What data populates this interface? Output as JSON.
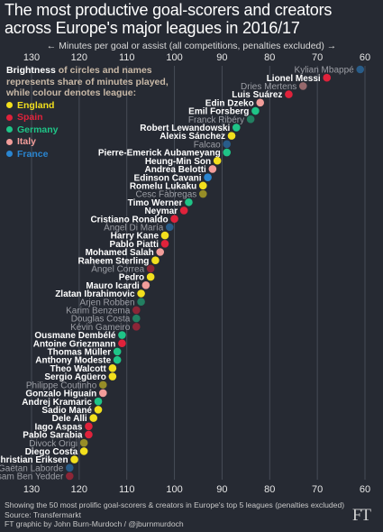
{
  "title": "The most productive goal-scorers and creators across Europe's major leagues in 2016/17",
  "axis_caption": "← Minutes per goal or assist (all competitions, penalties excluded) →",
  "legend": {
    "line1_bold": "Brightness",
    "line1_rest": " of circles and names",
    "line2": "represents share of minutes played,",
    "line3": "while colour denotes league:",
    "leagues": [
      {
        "name": "England",
        "color": "#f2df1d"
      },
      {
        "name": "Spain",
        "color": "#e0223b"
      },
      {
        "name": "Germany",
        "color": "#1fc487"
      },
      {
        "name": "Italy",
        "color": "#f29d9a"
      },
      {
        "name": "France",
        "color": "#2a85d0"
      }
    ]
  },
  "chart_data": {
    "type": "scatter",
    "x_label": "Minutes per goal or assist (all competitions, penalties excluded)",
    "x_reversed": true,
    "xlim": [
      130,
      60
    ],
    "x_ticks": [
      130,
      120,
      110,
      100,
      90,
      80,
      70,
      60
    ],
    "grid": true,
    "players": [
      {
        "name": "Kylian Mbappé",
        "minutes": 61,
        "league": "France",
        "bright": false
      },
      {
        "name": "Lionel Messi",
        "minutes": 68,
        "league": "Spain",
        "bright": true
      },
      {
        "name": "Dries Mertens",
        "minutes": 73,
        "league": "Italy",
        "bright": false
      },
      {
        "name": "Luis Suárez",
        "minutes": 76,
        "league": "Spain",
        "bright": true
      },
      {
        "name": "Edin Dzeko",
        "minutes": 82,
        "league": "Italy",
        "bright": true
      },
      {
        "name": "Emil Forsberg",
        "minutes": 83,
        "league": "Germany",
        "bright": true
      },
      {
        "name": "Franck Ribéry",
        "minutes": 84,
        "league": "Germany",
        "bright": false
      },
      {
        "name": "Robert Lewandowski",
        "minutes": 87,
        "league": "Germany",
        "bright": true
      },
      {
        "name": "Alexis Sánchez",
        "minutes": 88,
        "league": "England",
        "bright": true
      },
      {
        "name": "Falcao",
        "minutes": 89,
        "league": "France",
        "bright": false
      },
      {
        "name": "Pierre-Emerick Aubameyang",
        "minutes": 89,
        "league": "Germany",
        "bright": true
      },
      {
        "name": "Heung-Min Son",
        "minutes": 91,
        "league": "England",
        "bright": true
      },
      {
        "name": "Andrea Belotti",
        "minutes": 92,
        "league": "Italy",
        "bright": true
      },
      {
        "name": "Edinson Cavani",
        "minutes": 93,
        "league": "France",
        "bright": true
      },
      {
        "name": "Romelu Lukaku",
        "minutes": 94,
        "league": "England",
        "bright": true
      },
      {
        "name": "Cesc Fàbregas",
        "minutes": 94,
        "league": "England",
        "bright": false
      },
      {
        "name": "Timo Werner",
        "minutes": 97,
        "league": "Germany",
        "bright": true
      },
      {
        "name": "Neymar",
        "minutes": 98,
        "league": "Spain",
        "bright": true
      },
      {
        "name": "Cristiano Ronaldo",
        "minutes": 100,
        "league": "Spain",
        "bright": true
      },
      {
        "name": "Ángel Di María",
        "minutes": 101,
        "league": "France",
        "bright": false
      },
      {
        "name": "Harry Kane",
        "minutes": 102,
        "league": "England",
        "bright": true
      },
      {
        "name": "Pablo Piatti",
        "minutes": 102,
        "league": "Spain",
        "bright": true
      },
      {
        "name": "Mohamed Salah",
        "minutes": 103,
        "league": "Italy",
        "bright": true
      },
      {
        "name": "Raheem Sterling",
        "minutes": 104,
        "league": "England",
        "bright": true
      },
      {
        "name": "Ángel Correa",
        "minutes": 105,
        "league": "Spain",
        "bright": false
      },
      {
        "name": "Pedro",
        "minutes": 105,
        "league": "England",
        "bright": true
      },
      {
        "name": "Mauro Icardi",
        "minutes": 106,
        "league": "Italy",
        "bright": true
      },
      {
        "name": "Zlatan Ibrahimovic",
        "minutes": 107,
        "league": "England",
        "bright": true
      },
      {
        "name": "Arjen Robben",
        "minutes": 107,
        "league": "Germany",
        "bright": false
      },
      {
        "name": "Karim Benzema",
        "minutes": 108,
        "league": "Spain",
        "bright": false
      },
      {
        "name": "Douglas Costa",
        "minutes": 108,
        "league": "Germany",
        "bright": false
      },
      {
        "name": "Kévin Gameiro",
        "minutes": 108,
        "league": "Spain",
        "bright": false
      },
      {
        "name": "Ousmane Dembélé",
        "minutes": 111,
        "league": "Germany",
        "bright": true
      },
      {
        "name": "Antoine Griezmann",
        "minutes": 111,
        "league": "Spain",
        "bright": true
      },
      {
        "name": "Thomas Müller",
        "minutes": 112,
        "league": "Germany",
        "bright": true
      },
      {
        "name": "Anthony Modeste",
        "minutes": 112,
        "league": "Germany",
        "bright": true
      },
      {
        "name": "Theo Walcott",
        "minutes": 113,
        "league": "England",
        "bright": true
      },
      {
        "name": "Sergio Agüero",
        "minutes": 113,
        "league": "England",
        "bright": true
      },
      {
        "name": "Philippe Coutinho",
        "minutes": 115,
        "league": "England",
        "bright": false
      },
      {
        "name": "Gonzalo Higuaín",
        "minutes": 115,
        "league": "Italy",
        "bright": true
      },
      {
        "name": "Andrej Kramaric",
        "minutes": 116,
        "league": "Germany",
        "bright": true
      },
      {
        "name": "Sadio Mané",
        "minutes": 116,
        "league": "England",
        "bright": true
      },
      {
        "name": "Dele Alli",
        "minutes": 117,
        "league": "England",
        "bright": true
      },
      {
        "name": "Iago Aspas",
        "minutes": 118,
        "league": "Spain",
        "bright": true
      },
      {
        "name": "Pablo Sarabia",
        "minutes": 118,
        "league": "Spain",
        "bright": true
      },
      {
        "name": "Divock Origi",
        "minutes": 119,
        "league": "England",
        "bright": false
      },
      {
        "name": "Diego Costa",
        "minutes": 119,
        "league": "England",
        "bright": true
      },
      {
        "name": "Christian Eriksen",
        "minutes": 121,
        "league": "England",
        "bright": true
      },
      {
        "name": "Gaëtan Laborde",
        "minutes": 122,
        "league": "France",
        "bright": false
      },
      {
        "name": "Wissam Ben Yedder",
        "minutes": 122,
        "league": "Spain",
        "bright": false
      }
    ]
  },
  "footer": {
    "note": "Showing the 50 most prolific goal-scorers & creators in Europe's top 5 leagues (penalties excluded)",
    "source": "Source: Transfermarkt",
    "credit": "FT graphic by John Burn-Murdoch / @jburnmurdoch",
    "logo": "FT"
  }
}
